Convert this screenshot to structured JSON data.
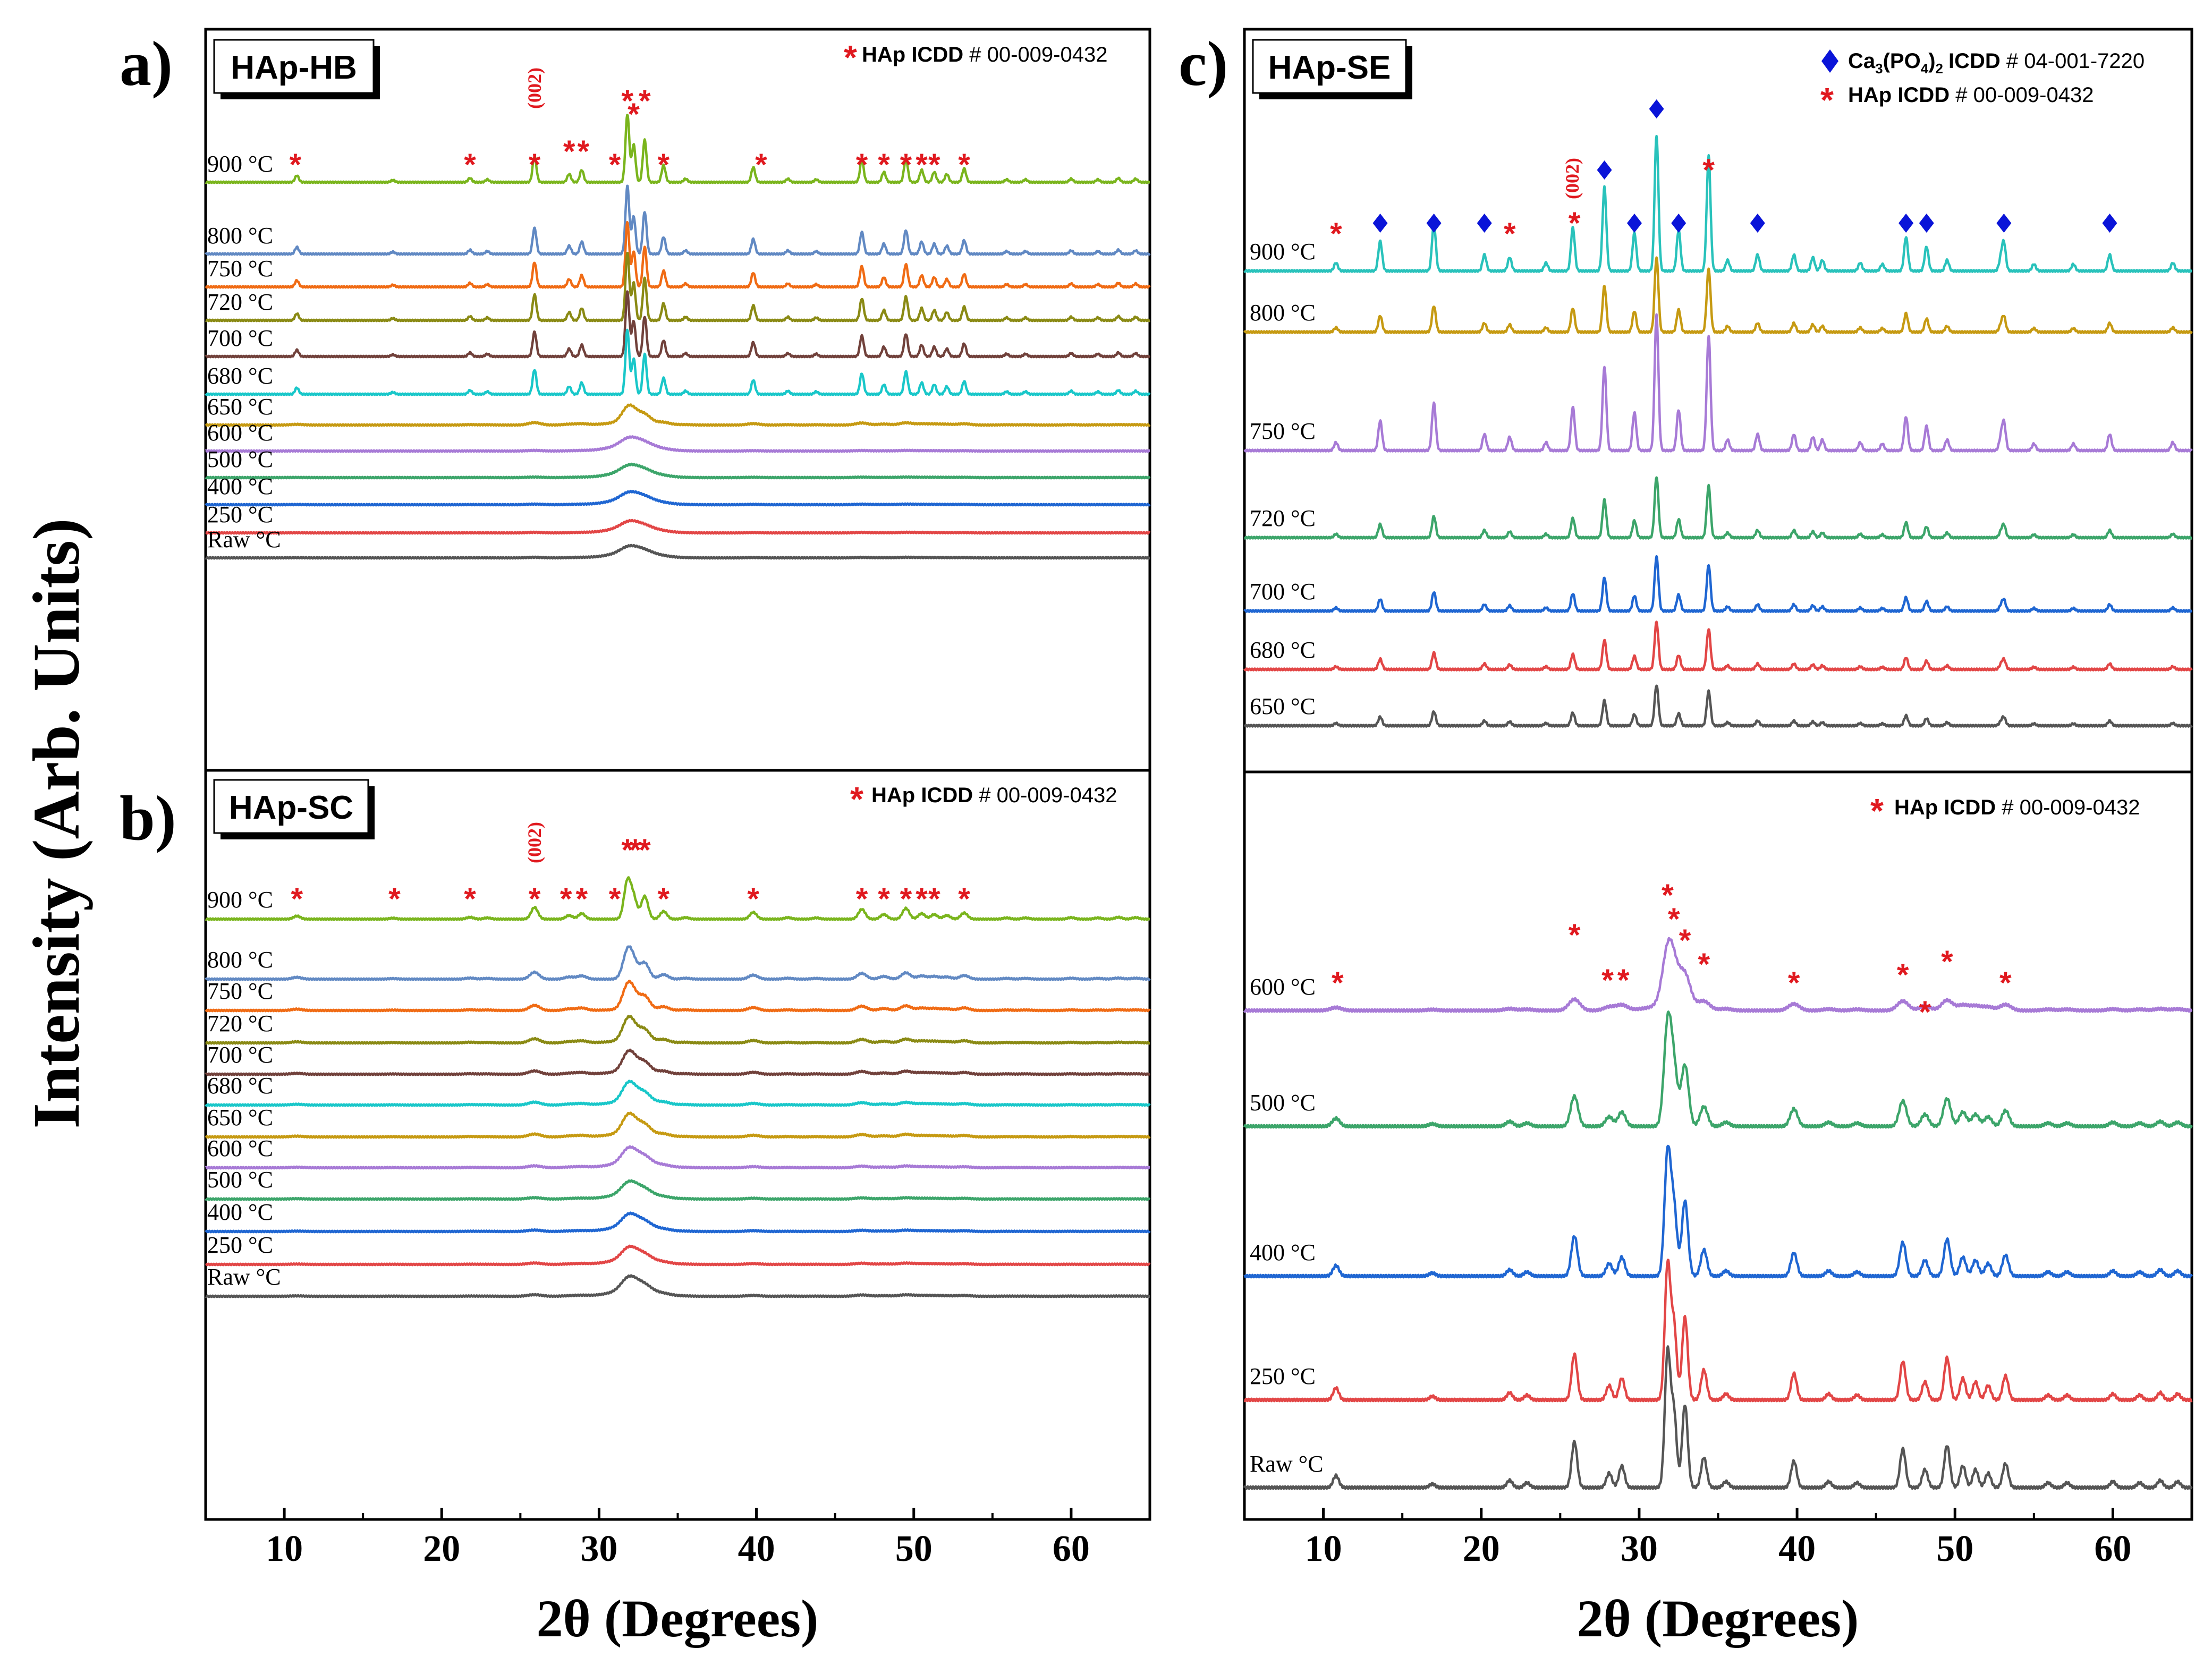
{
  "figure": {
    "y_axis_label": "Intensity (Arb. Units)",
    "legend_hap_star": "*",
    "legend_hap_bold": "HAp ICDD",
    "legend_hap_code": "# 00-009-0432",
    "legend_ca3_bold": "Ca",
    "legend_ca3_mid": "(PO",
    "legend_ca3_end": ")",
    "legend_ca3_sub1": "3",
    "legend_ca3_sub2": "4",
    "legend_ca3_sub3": "2",
    "legend_ca3_rest_bold": "ICDD",
    "legend_ca3_code": "# 04-001-7220",
    "plane_label": "(002)"
  },
  "colors": {
    "black": "#000000",
    "star": "#e0191f",
    "diamond": "#0a14d8",
    "green": "#7ab51d",
    "slate": "#6189c3",
    "orange": "#f06b14",
    "olive": "#8a8a14",
    "brown": "#71413b",
    "cyan": "#19c7c9",
    "gold": "#c69a12",
    "purple": "#a77ad6",
    "seagreen": "#3ca56a",
    "blue": "#1f66d2",
    "red": "#e24646",
    "grey": "#555555",
    "teal": "#29c2bb"
  },
  "chart_data": [
    {
      "id": "a",
      "type": "line",
      "panel_letter": "a)",
      "title": "HAp-HB",
      "xlabel": "2θ (Degrees)",
      "ylabel": "Intensity (Arb. Units)",
      "xlim": [
        5,
        65
      ],
      "xticks": [
        10,
        20,
        30,
        40,
        50,
        60
      ],
      "legend": "HAp ICDD # 00-009-0432",
      "series": [
        {
          "name": "900 °C",
          "color": "green",
          "scale": 1.0,
          "crystal": 1.0,
          "profile": "hap"
        },
        {
          "name": "800 °C",
          "color": "slate",
          "scale": 1.0,
          "crystal": 1.0,
          "profile": "hap"
        },
        {
          "name": "750 °C",
          "color": "orange",
          "scale": 0.95,
          "crystal": 1.0,
          "profile": "hap"
        },
        {
          "name": "720 °C",
          "color": "olive",
          "scale": 1.0,
          "crystal": 1.0,
          "profile": "hap"
        },
        {
          "name": "700 °C",
          "color": "brown",
          "scale": 0.95,
          "crystal": 1.0,
          "profile": "hap"
        },
        {
          "name": "680 °C",
          "color": "cyan",
          "scale": 0.95,
          "crystal": 1.0,
          "profile": "hap"
        },
        {
          "name": "650 °C",
          "color": "gold",
          "scale": 0.38,
          "crystal": 0.3,
          "profile": "hap"
        },
        {
          "name": "600 °C",
          "color": "purple",
          "scale": 0.3,
          "crystal": 0.0,
          "profile": "hap"
        },
        {
          "name": "500 °C",
          "color": "seagreen",
          "scale": 0.28,
          "crystal": 0.0,
          "profile": "hap"
        },
        {
          "name": "400 °C",
          "color": "blue",
          "scale": 0.28,
          "crystal": 0.0,
          "profile": "hap"
        },
        {
          "name": "250 °C",
          "color": "red",
          "scale": 0.26,
          "crystal": 0.0,
          "profile": "hap"
        },
        {
          "name": "Raw °C",
          "color": "grey",
          "scale": 0.26,
          "crystal": 0.0,
          "profile": "hap"
        }
      ],
      "star_positions": [
        10.7,
        21.8,
        25.9,
        28.1,
        29.0,
        31.0,
        31.8,
        32.2,
        32.9,
        34.1,
        40.3,
        46.7,
        48.1,
        49.5,
        50.5,
        51.3,
        53.2
      ]
    },
    {
      "id": "b",
      "type": "line",
      "panel_letter": "b)",
      "title": "HAp-SC",
      "xlabel": "2θ (Degrees)",
      "ylabel": "Intensity (Arb. Units)",
      "xlim": [
        5,
        65
      ],
      "xticks": [
        10,
        20,
        30,
        40,
        50,
        60
      ],
      "legend": "HAp ICDD # 00-009-0432",
      "series": [
        {
          "name": "900 °C",
          "color": "green",
          "scale": 0.75,
          "crystal": 0.75,
          "profile": "hap"
        },
        {
          "name": "800 °C",
          "color": "slate",
          "scale": 0.65,
          "crystal": 0.55,
          "profile": "hap"
        },
        {
          "name": "750 °C",
          "color": "orange",
          "scale": 0.6,
          "crystal": 0.45,
          "profile": "hap"
        },
        {
          "name": "720 °C",
          "color": "olive",
          "scale": 0.55,
          "crystal": 0.4,
          "profile": "hap"
        },
        {
          "name": "700 °C",
          "color": "brown",
          "scale": 0.5,
          "crystal": 0.35,
          "profile": "hap"
        },
        {
          "name": "680 °C",
          "color": "cyan",
          "scale": 0.5,
          "crystal": 0.3,
          "profile": "hap"
        },
        {
          "name": "650 °C",
          "color": "gold",
          "scale": 0.5,
          "crystal": 0.3,
          "profile": "hap"
        },
        {
          "name": "600 °C",
          "color": "purple",
          "scale": 0.45,
          "crystal": 0.2,
          "profile": "hap"
        },
        {
          "name": "500 °C",
          "color": "seagreen",
          "scale": 0.4,
          "crystal": 0.15,
          "profile": "hap"
        },
        {
          "name": "400 °C",
          "color": "blue",
          "scale": 0.4,
          "crystal": 0.15,
          "profile": "hap"
        },
        {
          "name": "250 °C",
          "color": "red",
          "scale": 0.4,
          "crystal": 0.15,
          "profile": "hap"
        },
        {
          "name": "Raw °C",
          "color": "grey",
          "scale": 0.45,
          "crystal": 0.15,
          "profile": "hap"
        }
      ],
      "star_positions": [
        10.8,
        17.0,
        21.8,
        25.9,
        27.9,
        28.9,
        31.0,
        31.8,
        32.3,
        32.9,
        34.1,
        39.8,
        46.7,
        48.1,
        49.5,
        50.5,
        51.3,
        53.2
      ]
    },
    {
      "id": "c_top",
      "type": "line",
      "panel_letter": "c)",
      "title": "HAp-SE",
      "xlabel": "",
      "ylabel": "Intensity (Arb. Units)",
      "xlim": [
        5,
        65
      ],
      "legend": [
        "Ca3(PO4)2 ICDD # 04-001-7220",
        "HAp ICDD # 00-009-0432"
      ],
      "series": [
        {
          "name": "900 °C",
          "color": "teal",
          "scale": 1.0,
          "profile": "tcp"
        },
        {
          "name": "800 °C",
          "color": "gold",
          "scale": 0.55,
          "profile": "tcp"
        },
        {
          "name": "750 °C",
          "color": "purple",
          "scale": 1.0,
          "profile": "tcp"
        },
        {
          "name": "720 °C",
          "color": "seagreen",
          "scale": 0.45,
          "profile": "tcp"
        },
        {
          "name": "700 °C",
          "color": "blue",
          "scale": 0.4,
          "profile": "tcp"
        },
        {
          "name": "680 °C",
          "color": "red",
          "scale": 0.35,
          "profile": "tcp"
        },
        {
          "name": "650 °C",
          "color": "grey",
          "scale": 0.3,
          "profile": "tcp"
        }
      ],
      "diamond_positions": [
        13.6,
        17.0,
        20.2,
        27.8,
        29.7,
        31.1,
        32.5,
        37.5,
        46.9,
        48.2,
        53.1,
        59.8
      ],
      "star_positions": [
        10.8,
        21.8,
        25.9,
        34.4
      ]
    },
    {
      "id": "c_bottom",
      "type": "line",
      "title": "",
      "xlabel": "2θ (Degrees)",
      "ylabel": "Intensity (Arb. Units)",
      "xlim": [
        5,
        65
      ],
      "xticks": [
        10,
        20,
        30,
        40,
        50,
        60
      ],
      "legend": "HAp ICDD # 00-009-0432",
      "series": [
        {
          "name": "600 °C",
          "color": "purple",
          "scale": 0.6,
          "crystal": 0.4,
          "profile": "hap"
        },
        {
          "name": "500 °C",
          "color": "seagreen",
          "scale": 0.85,
          "crystal": 0.7,
          "profile": "hap"
        },
        {
          "name": "400 °C",
          "color": "blue",
          "scale": 0.95,
          "crystal": 0.8,
          "profile": "hap"
        },
        {
          "name": "250 °C",
          "color": "red",
          "scale": 1.0,
          "crystal": 0.85,
          "profile": "hap"
        },
        {
          "name": "Raw °C",
          "color": "grey",
          "scale": 1.0,
          "crystal": 0.85,
          "profile": "hap"
        }
      ],
      "star_positions": [
        10.9,
        25.9,
        28.0,
        29.0,
        31.8,
        32.2,
        32.9,
        34.1,
        39.8,
        46.7,
        48.1,
        49.5,
        53.2
      ]
    }
  ]
}
